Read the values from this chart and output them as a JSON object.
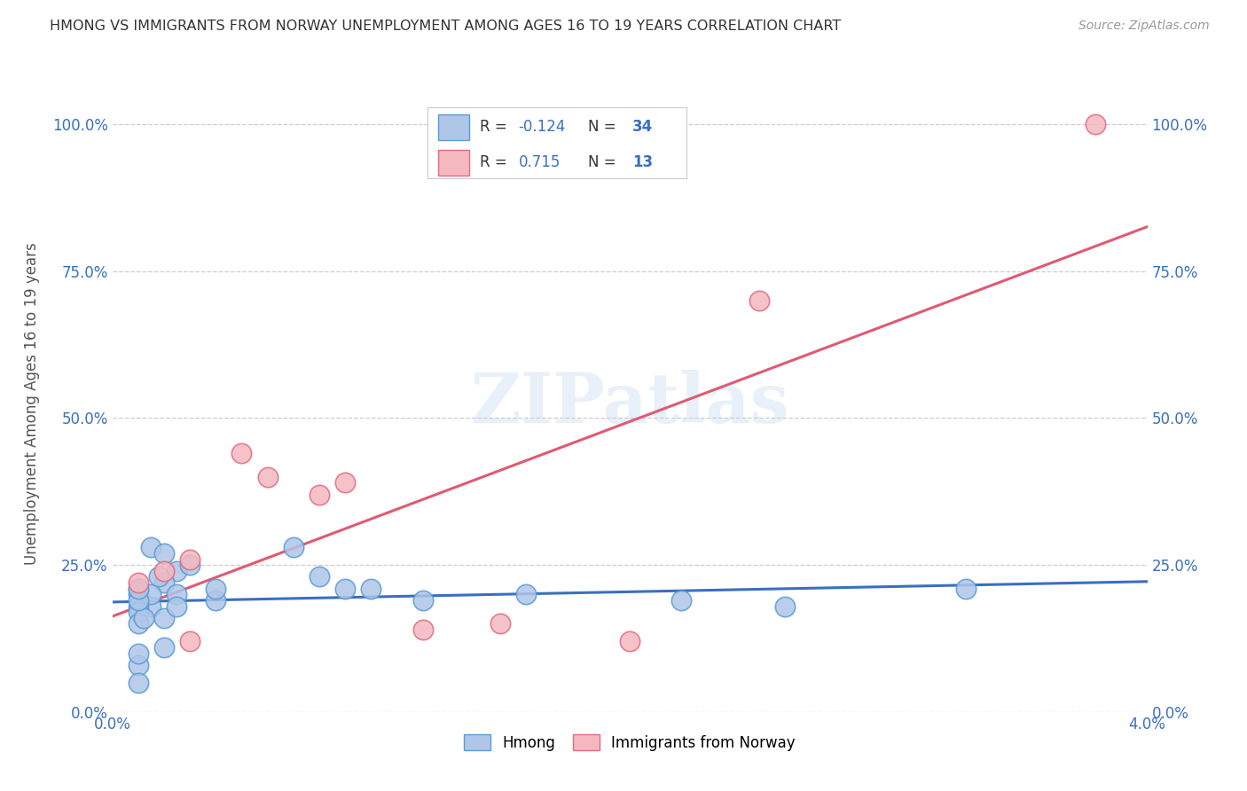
{
  "title": "HMONG VS IMMIGRANTS FROM NORWAY UNEMPLOYMENT AMONG AGES 16 TO 19 YEARS CORRELATION CHART",
  "source": "Source: ZipAtlas.com",
  "ylabel": "Unemployment Among Ages 16 to 19 years",
  "xmin": 0.0,
  "xmax": 0.04,
  "ymin": 0.0,
  "ymax": 1.05,
  "yticks": [
    0.0,
    0.25,
    0.5,
    0.75,
    1.0
  ],
  "ytick_labels": [
    "0.0%",
    "25.0%",
    "50.0%",
    "75.0%",
    "100.0%"
  ],
  "xticks": [
    0.0,
    0.01,
    0.02,
    0.03,
    0.04
  ],
  "xtick_labels": [
    "0.0%",
    "",
    "",
    "",
    "4.0%"
  ],
  "watermark": "ZIPatlas",
  "legend_labels": [
    "Hmong",
    "Immigrants from Norway"
  ],
  "hmong_R": "-0.124",
  "hmong_N": "34",
  "norway_R": "0.715",
  "norway_N": "13",
  "hmong_color": "#aec6e8",
  "hmong_edge_color": "#5b9bd5",
  "norway_color": "#f4b8c1",
  "norway_edge_color": "#e06c7c",
  "hmong_line_color": "#3a6fbf",
  "norway_line_color": "#e05a72",
  "title_color": "#333333",
  "source_color": "#999999",
  "axis_label_color": "#555555",
  "tick_color": "#3a6fbf",
  "grid_color": "#cccccc",
  "hmong_x": [
    0.0015,
    0.002,
    0.0025,
    0.003,
    0.001,
    0.001,
    0.0015,
    0.002,
    0.0025,
    0.001,
    0.001,
    0.001,
    0.0012,
    0.0015,
    0.001,
    0.001,
    0.002,
    0.002,
    0.0025,
    0.001,
    0.0018,
    0.004,
    0.004,
    0.007,
    0.008,
    0.009,
    0.01,
    0.012,
    0.016,
    0.022,
    0.026,
    0.033,
    0.001,
    0.001
  ],
  "hmong_y": [
    0.28,
    0.27,
    0.24,
    0.25,
    0.2,
    0.21,
    0.18,
    0.22,
    0.2,
    0.18,
    0.17,
    0.15,
    0.16,
    0.2,
    0.19,
    0.08,
    0.11,
    0.16,
    0.18,
    0.21,
    0.23,
    0.19,
    0.21,
    0.28,
    0.23,
    0.21,
    0.21,
    0.19,
    0.2,
    0.19,
    0.18,
    0.21,
    0.05,
    0.1
  ],
  "norway_x": [
    0.001,
    0.002,
    0.003,
    0.003,
    0.005,
    0.006,
    0.008,
    0.009,
    0.012,
    0.015,
    0.02,
    0.025,
    0.038
  ],
  "norway_y": [
    0.22,
    0.24,
    0.26,
    0.12,
    0.44,
    0.4,
    0.37,
    0.39,
    0.14,
    0.15,
    0.12,
    0.7,
    1.0
  ]
}
